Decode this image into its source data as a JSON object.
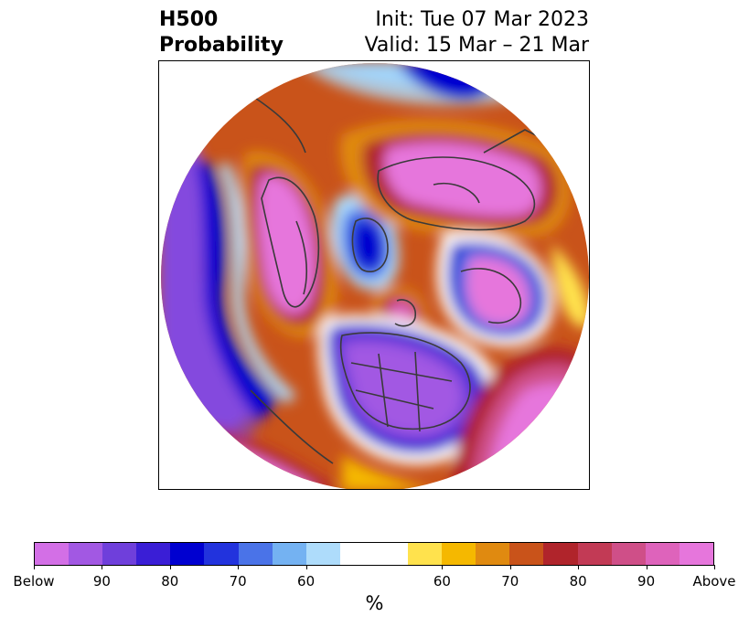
{
  "title": {
    "left_line1": "H500",
    "left_line2": "Probability",
    "right_line1": "Init: Tue 07 Mar 2023",
    "right_line2": "Valid: 15 Mar – 21 Mar"
  },
  "colorbar": {
    "colors": [
      "#d36fe6",
      "#a258e3",
      "#6f3fdb",
      "#3a1ed6",
      "#0000d0",
      "#2233dd",
      "#4a73e8",
      "#74b2f2",
      "#aedcfb",
      "#ffffff",
      "#ffffff",
      "#ffe24d",
      "#f5b800",
      "#e08a10",
      "#c9531a",
      "#b0242b",
      "#c23a55",
      "#cf4f88",
      "#de63bb",
      "#e676dc"
    ],
    "tick_labels": [
      "Below",
      "90",
      "80",
      "70",
      "60",
      "60",
      "70",
      "80",
      "90",
      "Above"
    ],
    "unit_label": "%"
  },
  "map": {
    "projection": "north-polar-stereographic",
    "features": [
      "coastlines",
      "country-borders",
      "state-borders"
    ],
    "anomalies": [
      {
        "name": "ridge-western-north-america",
        "category": "Above",
        "color": "#e676dc"
      },
      {
        "name": "ridge-northern-europe",
        "category": "Above",
        "color": "#e676dc"
      },
      {
        "name": "ridge-north-atlantic",
        "category": "Above",
        "color": "#e676dc"
      },
      {
        "name": "ridge-east-pacific-subtropics",
        "category": "Above",
        "color": "#e676dc"
      },
      {
        "name": "ridge-central-arctic",
        "category": "Above",
        "color": "#e676dc"
      },
      {
        "name": "trough-eastern-north-america",
        "category": "Below",
        "color": "#a258e3"
      },
      {
        "name": "trough-central-asia",
        "category": "Below",
        "color": "#a258e3"
      },
      {
        "name": "trough-arctic-siberia",
        "category": "Below",
        "color": "#0000d0"
      },
      {
        "name": "trough-north-pacific",
        "category": "Below",
        "color": "#a258e3"
      }
    ]
  }
}
